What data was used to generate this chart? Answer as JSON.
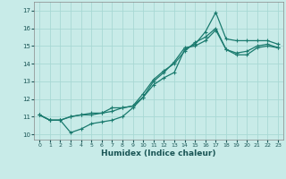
{
  "xlabel": "Humidex (Indice chaleur)",
  "background_color": "#c8ebe8",
  "grid_color": "#a8d8d4",
  "line_color": "#1a7a6e",
  "xlim": [
    -0.5,
    23.5
  ],
  "ylim": [
    9.7,
    17.5
  ],
  "xticks": [
    0,
    1,
    2,
    3,
    4,
    5,
    6,
    7,
    8,
    9,
    10,
    11,
    12,
    13,
    14,
    15,
    16,
    17,
    18,
    19,
    20,
    21,
    22,
    23
  ],
  "yticks": [
    10,
    11,
    12,
    13,
    14,
    15,
    16,
    17
  ],
  "line1_x": [
    0,
    1,
    2,
    3,
    4,
    5,
    6,
    7,
    8,
    9,
    10,
    11,
    12,
    13,
    14,
    15,
    16,
    17,
    18,
    19,
    20,
    21,
    22,
    23
  ],
  "line1_y": [
    11.1,
    10.8,
    10.8,
    10.1,
    10.3,
    10.6,
    10.7,
    10.8,
    11.0,
    11.5,
    12.1,
    12.8,
    13.2,
    13.5,
    14.8,
    15.1,
    15.8,
    16.9,
    15.4,
    15.3,
    15.3,
    15.3,
    15.3,
    15.1
  ],
  "line2_x": [
    0,
    1,
    2,
    3,
    4,
    5,
    6,
    7,
    8,
    9,
    10,
    11,
    12,
    13,
    14,
    15,
    16,
    17,
    18,
    19,
    20,
    21,
    22,
    23
  ],
  "line2_y": [
    11.1,
    10.8,
    10.8,
    11.0,
    11.1,
    11.2,
    11.2,
    11.3,
    11.5,
    11.6,
    12.1,
    13.0,
    13.5,
    14.1,
    14.9,
    15.0,
    15.3,
    15.9,
    14.8,
    14.6,
    14.7,
    15.0,
    15.1,
    14.9
  ],
  "line3_x": [
    0,
    1,
    2,
    3,
    4,
    5,
    6,
    7,
    8,
    9,
    10,
    11,
    12,
    13,
    14,
    15,
    16,
    17,
    18,
    19,
    20,
    21,
    22,
    23
  ],
  "line3_y": [
    11.1,
    10.8,
    10.8,
    11.0,
    11.1,
    11.1,
    11.2,
    11.5,
    11.5,
    11.6,
    12.3,
    13.1,
    13.6,
    14.0,
    14.7,
    15.2,
    15.5,
    16.0,
    14.8,
    14.5,
    14.5,
    14.9,
    15.0,
    14.9
  ]
}
